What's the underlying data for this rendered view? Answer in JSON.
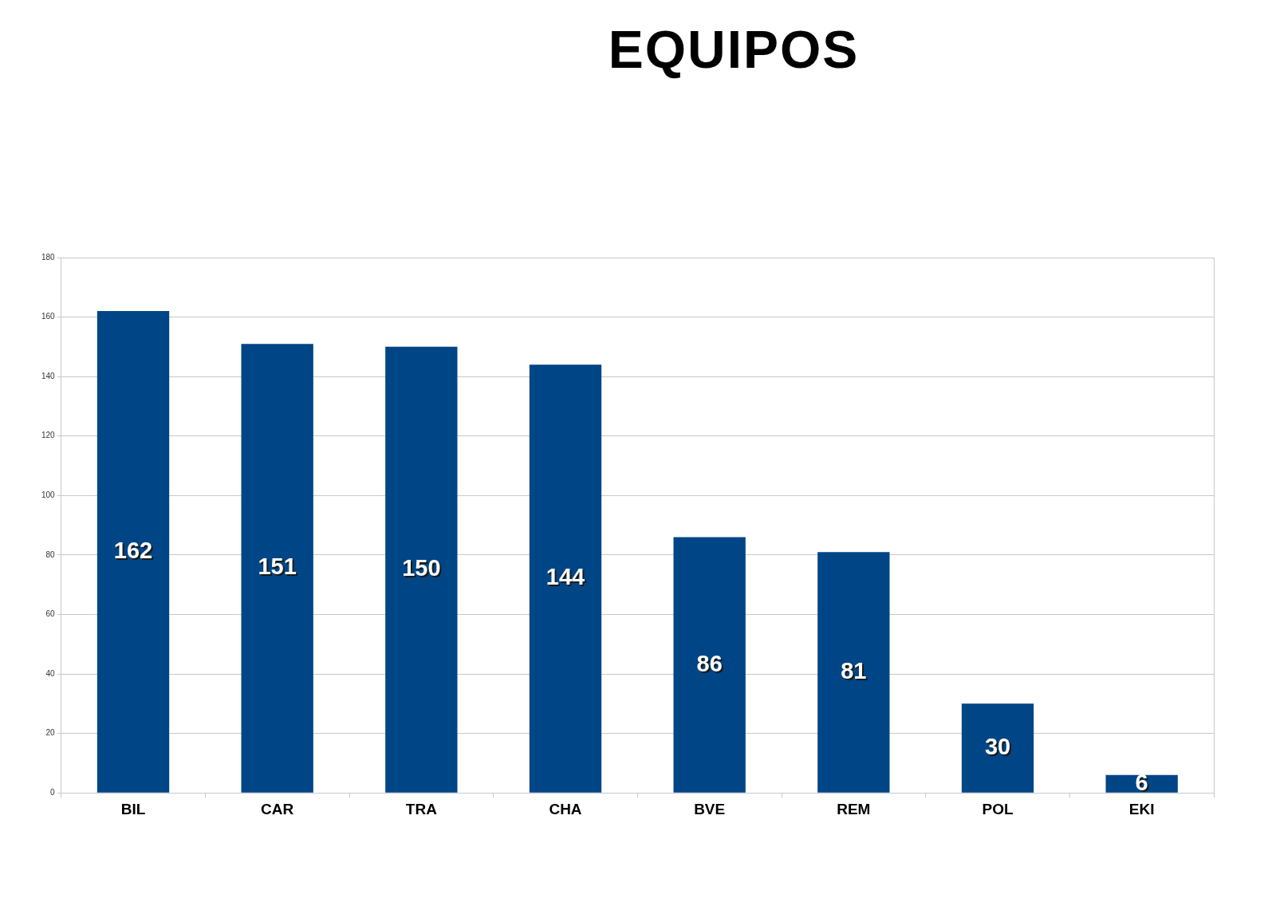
{
  "chart_data": {
    "type": "bar",
    "title": "EQUIPOS",
    "categories": [
      "BIL",
      "CAR",
      "TRA",
      "CHA",
      "BVE",
      "REM",
      "POL",
      "EKI"
    ],
    "values": [
      162,
      151,
      150,
      144,
      86,
      81,
      30,
      6
    ],
    "color": "#004586",
    "ylim": [
      0,
      180
    ],
    "yticks": [
      0,
      20,
      40,
      60,
      80,
      100,
      120,
      140,
      160,
      180
    ],
    "grid": "y",
    "data_labels": true
  }
}
